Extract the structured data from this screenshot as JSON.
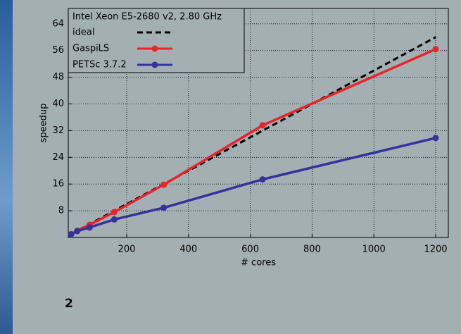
{
  "chart_data": {
    "type": "line",
    "legend_title": "Intel Xeon E5-2680 v2, 2.80 GHz",
    "x_label": "# cores",
    "y_label": "speedup",
    "x": [
      20,
      40,
      80,
      160,
      320,
      640,
      1200
    ],
    "series": [
      {
        "name": "ideal",
        "color": "#000000",
        "dashed": true,
        "markers": false,
        "values": [
          1,
          2,
          4,
          8,
          16,
          32,
          60
        ]
      },
      {
        "name": "GaspiLS",
        "color": "#e8242b",
        "dashed": false,
        "markers": true,
        "values": [
          1,
          2,
          3.8,
          7.6,
          15.8,
          33.6,
          56.4
        ]
      },
      {
        "name": "PETSc 3.7.2",
        "color": "#34339a",
        "dashed": false,
        "markers": true,
        "values": [
          0.9,
          1.9,
          3,
          5.4,
          8.9,
          17.4,
          29.8
        ]
      }
    ],
    "xlim": [
      11,
      1241
    ],
    "ylim": [
      0,
      68.6
    ],
    "xticks": [
      200,
      400,
      600,
      800,
      1000,
      1200
    ],
    "yticks": [
      8,
      16,
      24,
      32,
      40,
      48,
      56,
      64
    ],
    "grid": true,
    "legend": "upper left"
  },
  "page_number": "2"
}
